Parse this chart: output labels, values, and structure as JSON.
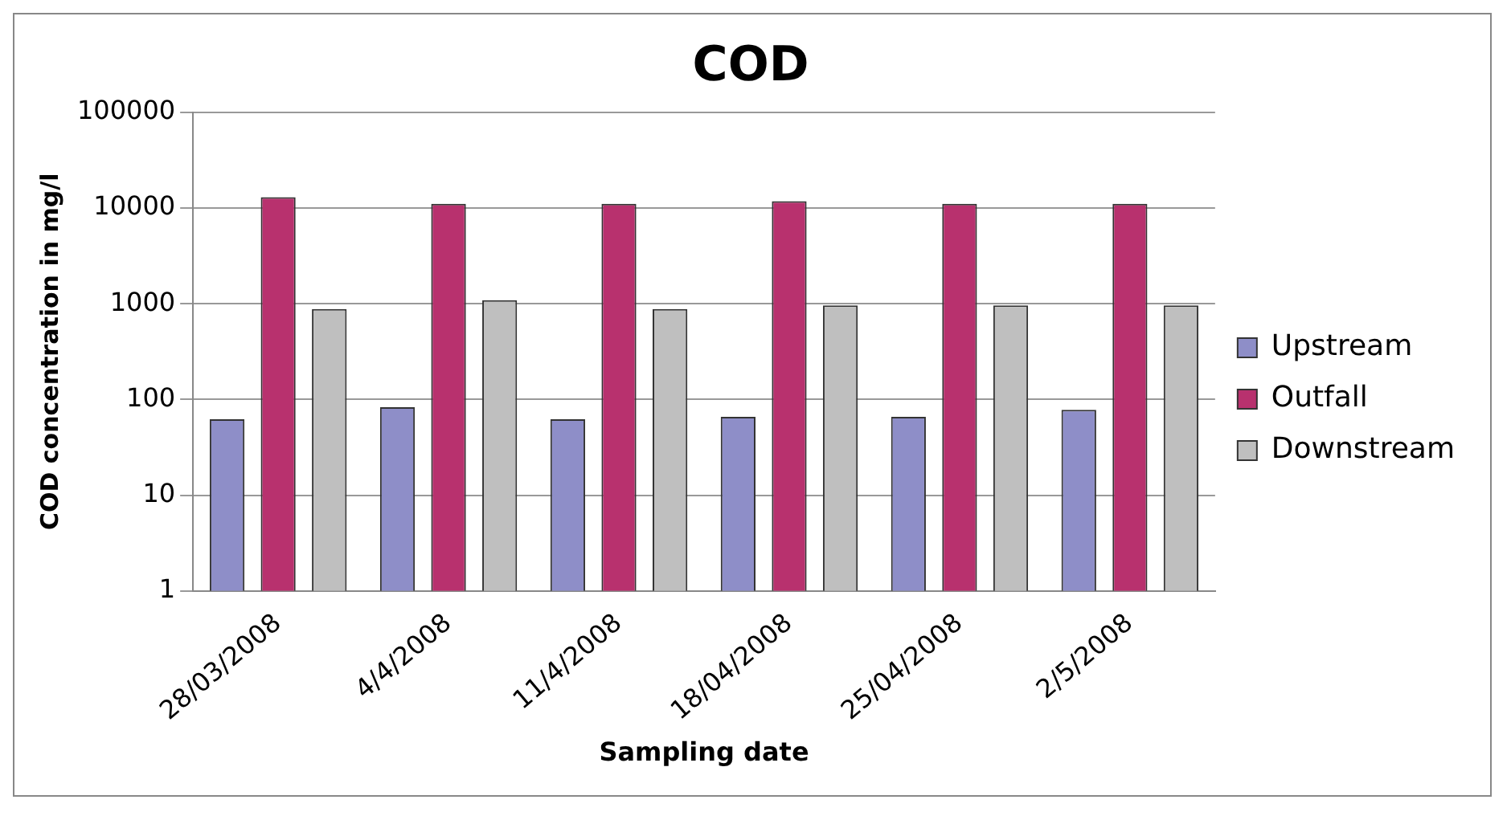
{
  "chart_data": {
    "type": "bar",
    "title": "COD",
    "xlabel": "Sampling date",
    "ylabel": "COD concentration in mg/l",
    "categories": [
      "28/03/2008",
      "4/4/2008",
      "11/4/2008",
      "18/04/2008",
      "25/04/2008",
      "2/5/2008"
    ],
    "series": [
      {
        "name": "Upstream",
        "color": "#8e8ec8",
        "values": [
          62,
          83,
          62,
          66,
          66,
          78
        ]
      },
      {
        "name": "Outfall",
        "color": "#b8316e",
        "values": [
          13000,
          11100,
          11100,
          11800,
          11100,
          11100
        ]
      },
      {
        "name": "Downstream",
        "color": "#bfbfbf",
        "values": [
          880,
          1090,
          880,
          960,
          960,
          960
        ]
      }
    ],
    "log": "y",
    "ylim": [
      1,
      100000
    ],
    "yticks": [
      1,
      10,
      100,
      1000,
      10000,
      100000
    ],
    "grid": "y",
    "legend": "right"
  }
}
